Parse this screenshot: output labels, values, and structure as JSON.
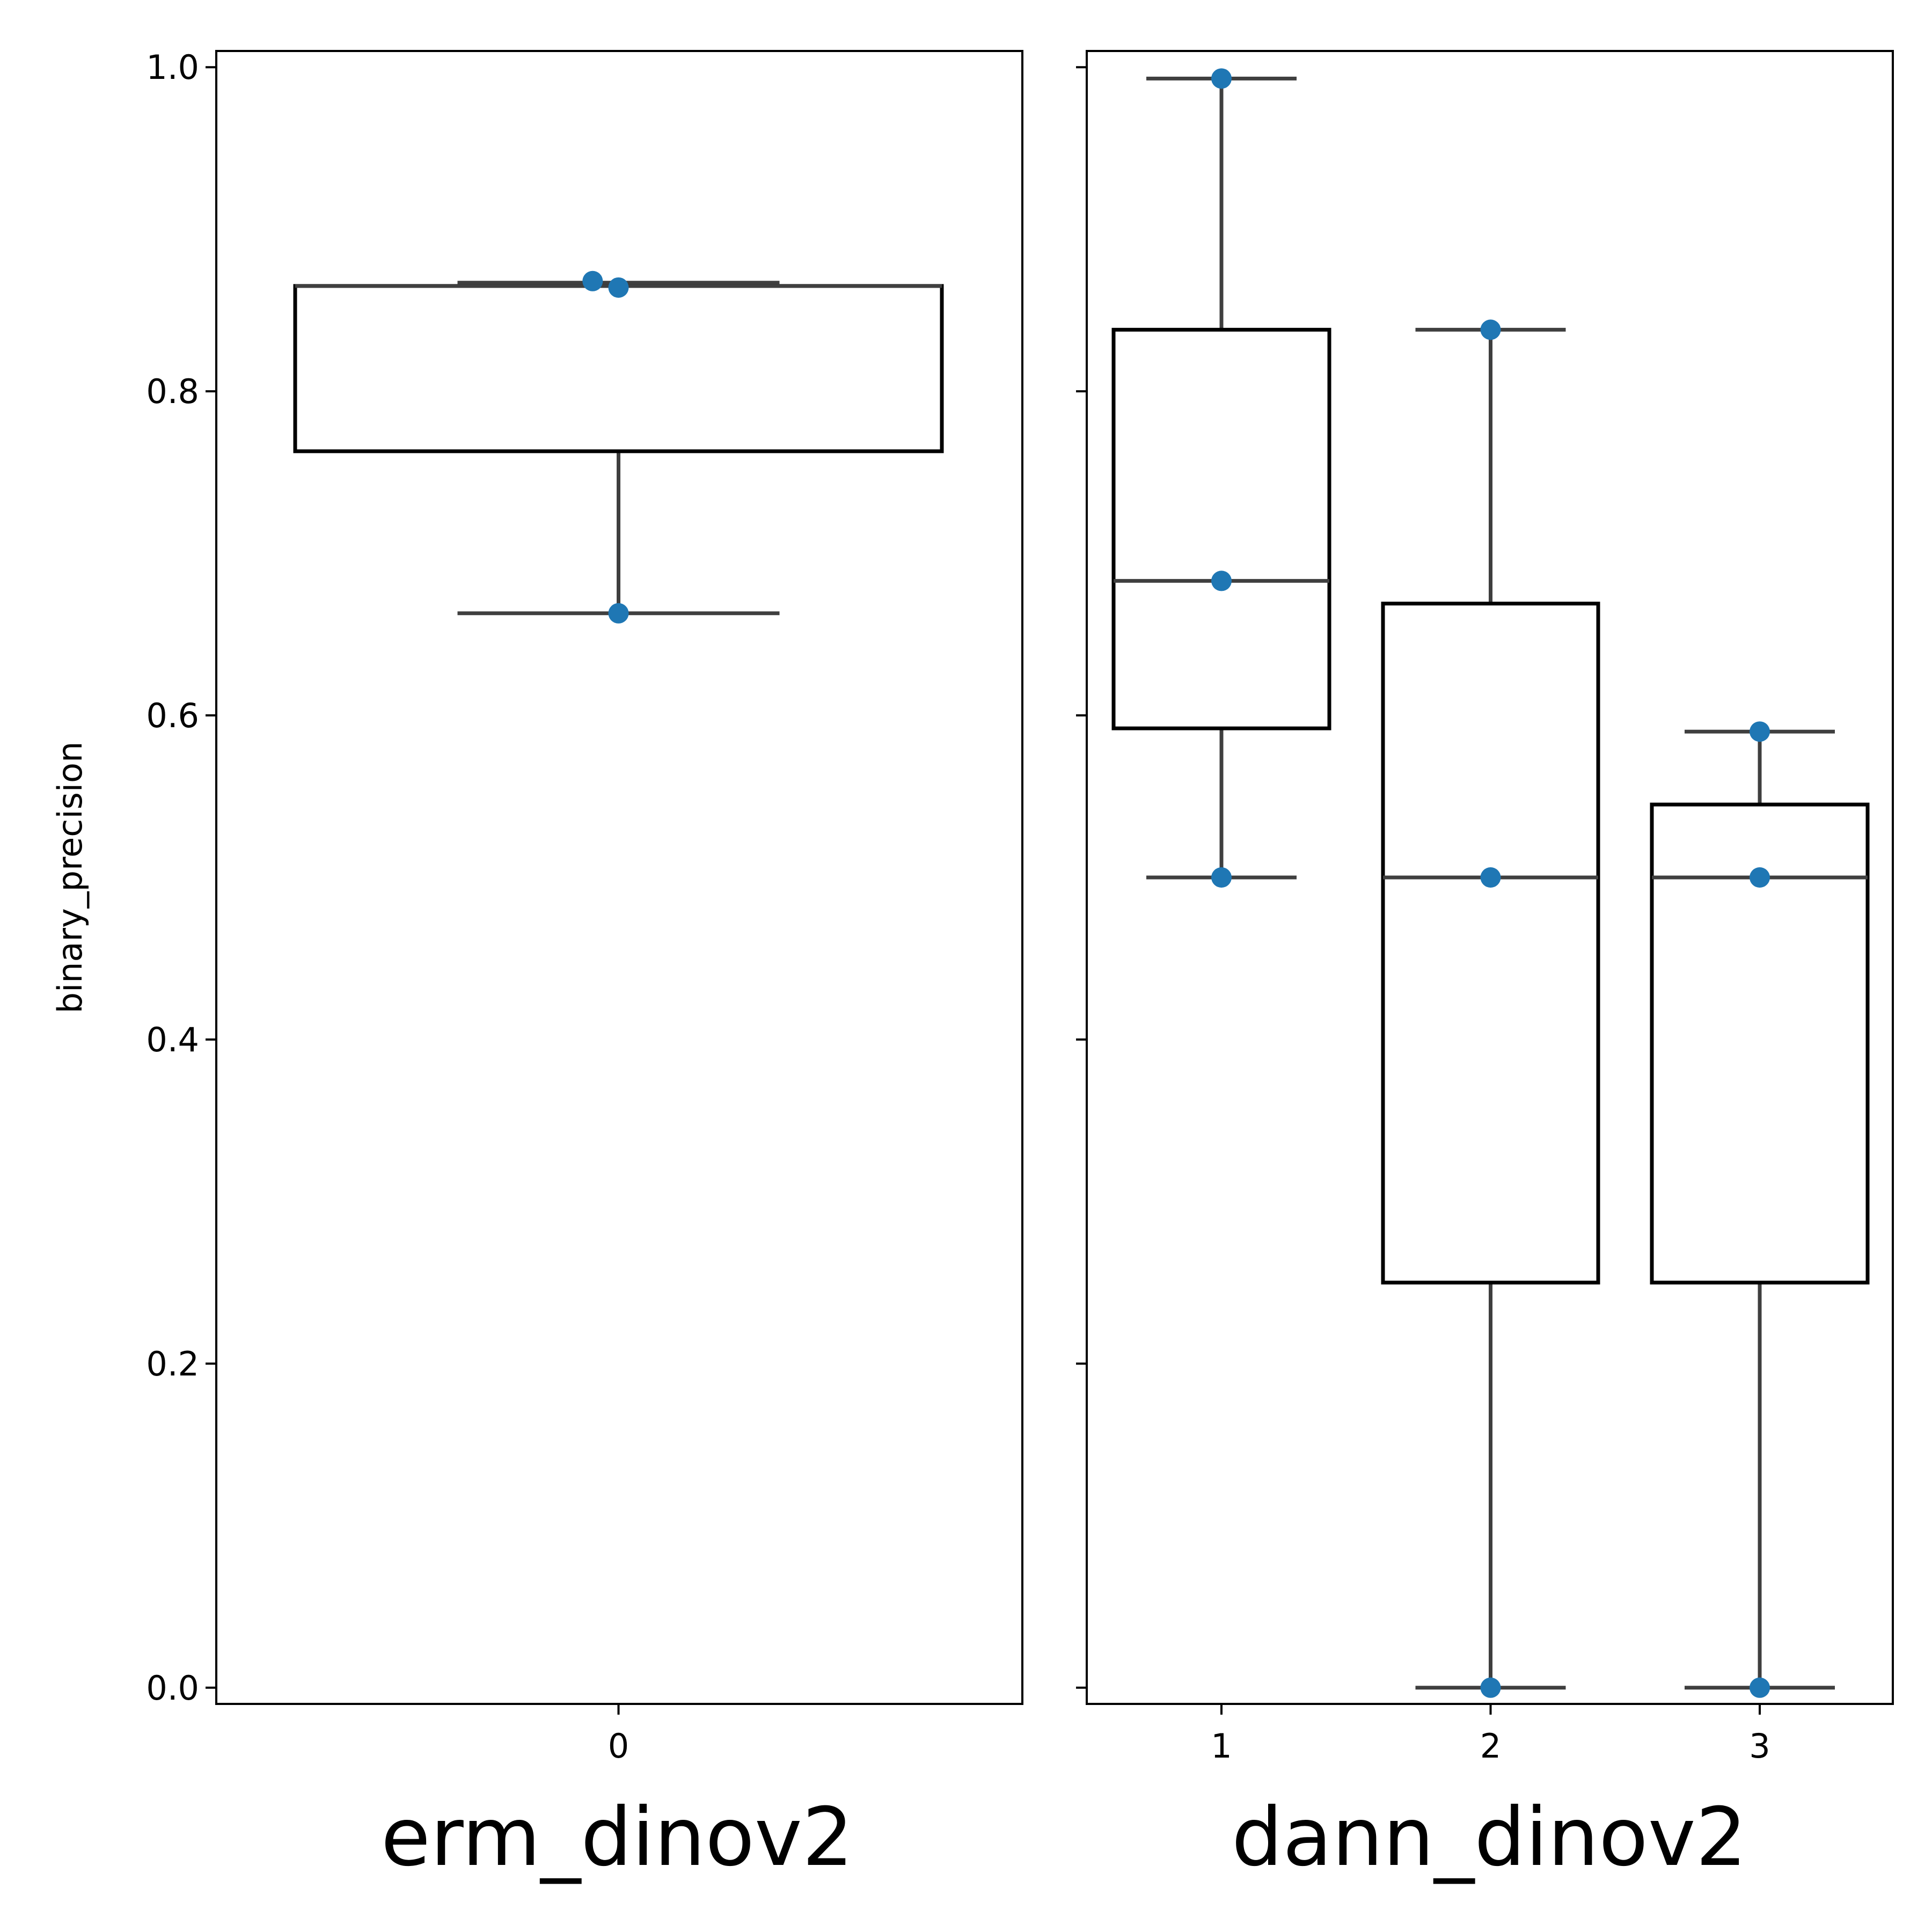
{
  "chart_data": [
    {
      "type": "box",
      "xlabel": "erm_dinov2",
      "ylabel": "binary_precision",
      "ylim": [
        -0.01,
        1.01
      ],
      "yticks": [
        0.0,
        0.2,
        0.4,
        0.6,
        0.8,
        1.0
      ],
      "ytick_labels": [
        "0.0",
        "0.2",
        "0.4",
        "0.6",
        "0.8",
        "1.0"
      ],
      "categories": [
        "0"
      ],
      "boxes": [
        {
          "category": "0",
          "whisker_low": 0.663,
          "q1": 0.763,
          "median": 0.865,
          "q3": 0.865,
          "whisker_high": 0.867
        }
      ],
      "points": [
        {
          "category": "0",
          "y": 0.868,
          "jitter": -0.04
        },
        {
          "category": "0",
          "y": 0.864,
          "jitter": 0.0
        },
        {
          "category": "0",
          "y": 0.663,
          "jitter": 0.0
        }
      ],
      "colors": {
        "points": "#1f77b4",
        "box_edge": "#000000",
        "whisker": "#3f3f3f"
      }
    },
    {
      "type": "box",
      "xlabel": "dann_dinov2",
      "ylim": [
        -0.01,
        1.01
      ],
      "yticks": [
        0.0,
        0.2,
        0.4,
        0.6,
        0.8,
        1.0
      ],
      "categories": [
        "1",
        "2",
        "3"
      ],
      "boxes": [
        {
          "category": "1",
          "whisker_low": 0.5,
          "q1": 0.592,
          "median": 0.683,
          "q3": 0.838,
          "whisker_high": 0.993
        },
        {
          "category": "2",
          "whisker_low": 0.0,
          "q1": 0.25,
          "median": 0.5,
          "q3": 0.669,
          "whisker_high": 0.838
        },
        {
          "category": "3",
          "whisker_low": 0.0,
          "q1": 0.25,
          "median": 0.5,
          "q3": 0.545,
          "whisker_high": 0.59
        }
      ],
      "points": [
        {
          "category": "1",
          "y": 0.993,
          "jitter": 0.0
        },
        {
          "category": "1",
          "y": 0.683,
          "jitter": 0.0
        },
        {
          "category": "1",
          "y": 0.5,
          "jitter": 0.0
        },
        {
          "category": "2",
          "y": 0.838,
          "jitter": 0.0
        },
        {
          "category": "2",
          "y": 0.5,
          "jitter": 0.0
        },
        {
          "category": "2",
          "y": 0.0,
          "jitter": 0.0
        },
        {
          "category": "3",
          "y": 0.59,
          "jitter": 0.0
        },
        {
          "category": "3",
          "y": 0.5,
          "jitter": 0.0
        },
        {
          "category": "3",
          "y": 0.0,
          "jitter": 0.0
        }
      ],
      "colors": {
        "points": "#1f77b4",
        "box_edge": "#000000",
        "whisker": "#3f3f3f"
      }
    }
  ]
}
